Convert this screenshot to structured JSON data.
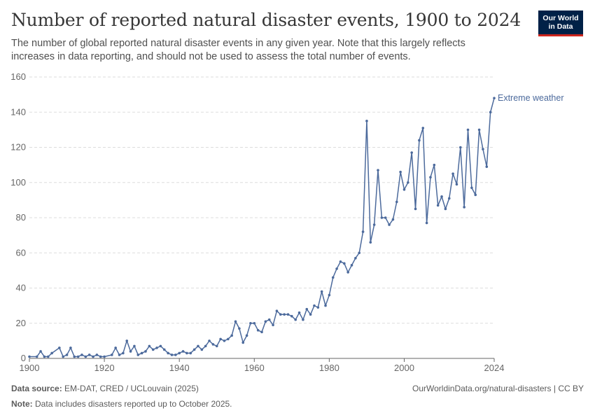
{
  "header": {
    "title": "Number of reported natural disaster events, 1900 to 2024",
    "subtitle": "The number of global reported natural disaster events in any given year. Note that this largely reflects increases in data reporting, and should not be used to assess the total number of events."
  },
  "logo": {
    "line1": "Our World",
    "line2": "in Data"
  },
  "footer": {
    "source_label": "Data source:",
    "source_text": "EM-DAT, CRED / UCLouvain (2025)",
    "note_label": "Note:",
    "note_text": "Data includes disasters reported up to October 2025.",
    "credit": "OurWorldinData.org/natural-disasters | CC BY"
  },
  "colors": {
    "series": "#4c6a9c",
    "grid": "#dddddd",
    "axis": "#666666"
  },
  "chart_data": {
    "type": "line",
    "xlim": [
      1900,
      2024
    ],
    "ylim": [
      0,
      160
    ],
    "yticks": [
      0,
      20,
      40,
      60,
      80,
      100,
      120,
      140,
      160
    ],
    "xticks": [
      1900,
      1920,
      1940,
      1960,
      1980,
      2000,
      2024
    ],
    "grid": true,
    "series": [
      {
        "name": "Extreme weather",
        "x": [
          1900,
          1902,
          1903,
          1904,
          1905,
          1906,
          1908,
          1909,
          1910,
          1911,
          1912,
          1913,
          1914,
          1915,
          1916,
          1917,
          1918,
          1919,
          1920,
          1922,
          1923,
          1924,
          1925,
          1926,
          1927,
          1928,
          1929,
          1930,
          1931,
          1932,
          1933,
          1934,
          1935,
          1936,
          1937,
          1938,
          1939,
          1940,
          1941,
          1942,
          1943,
          1944,
          1945,
          1946,
          1947,
          1948,
          1949,
          1950,
          1951,
          1952,
          1953,
          1954,
          1955,
          1956,
          1957,
          1958,
          1959,
          1960,
          1961,
          1962,
          1963,
          1964,
          1965,
          1966,
          1967,
          1968,
          1969,
          1970,
          1971,
          1972,
          1973,
          1974,
          1975,
          1976,
          1977,
          1978,
          1979,
          1980,
          1981,
          1982,
          1983,
          1984,
          1985,
          1986,
          1987,
          1988,
          1989,
          1990,
          1991,
          1992,
          1993,
          1994,
          1995,
          1996,
          1997,
          1998,
          1999,
          2000,
          2001,
          2002,
          2003,
          2004,
          2005,
          2006,
          2007,
          2008,
          2009,
          2010,
          2011,
          2012,
          2013,
          2014,
          2015,
          2016,
          2017,
          2018,
          2019,
          2020,
          2021,
          2022,
          2023,
          2024
        ],
        "y": [
          1,
          1,
          4,
          1,
          1,
          3,
          6,
          1,
          2,
          6,
          1,
          1,
          2,
          1,
          2,
          1,
          2,
          1,
          1,
          2,
          6,
          2,
          3,
          10,
          4,
          7,
          2,
          3,
          4,
          7,
          5,
          6,
          7,
          5,
          3,
          2,
          2,
          3,
          4,
          3,
          3,
          5,
          7,
          5,
          7,
          10,
          8,
          7,
          11,
          10,
          11,
          13,
          21,
          17,
          9,
          13,
          20,
          20,
          16,
          15,
          21,
          22,
          19,
          27,
          25,
          25,
          25,
          24,
          22,
          26,
          22,
          28,
          25,
          30,
          29,
          38,
          30,
          36,
          46,
          51,
          55,
          54,
          49,
          53,
          57,
          60,
          72,
          135,
          66,
          76,
          107,
          80,
          80,
          76,
          79,
          89,
          106,
          96,
          100,
          117,
          85,
          124,
          131,
          77,
          103,
          110,
          87,
          92,
          85,
          91,
          105,
          99,
          120,
          86,
          130,
          97,
          93,
          130,
          119,
          109,
          140,
          148
        ]
      }
    ]
  }
}
